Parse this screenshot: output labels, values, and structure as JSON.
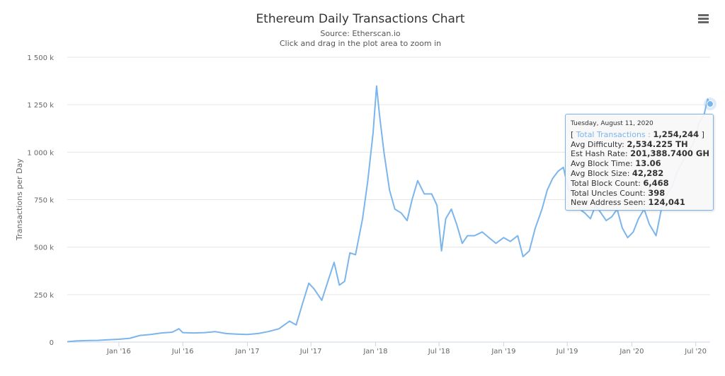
{
  "chart_data": {
    "type": "line",
    "title": "Ethereum Daily Transactions Chart",
    "subtitle": "Source: Etherscan.io",
    "subtitle2": "Click and drag in the plot area to zoom in",
    "ylabel": "Transactions per Day",
    "xlabel": "",
    "ylim": [
      0,
      1500000
    ],
    "y_ticks": [
      {
        "value": 0,
        "label": "0"
      },
      {
        "value": 250000,
        "label": "250 k"
      },
      {
        "value": 500000,
        "label": "500 k"
      },
      {
        "value": 750000,
        "label": "750 k"
      },
      {
        "value": 1000000,
        "label": "1 000 k"
      },
      {
        "value": 1250000,
        "label": "1 250 k"
      },
      {
        "value": 1500000,
        "label": "1 500 k"
      }
    ],
    "xlim": [
      "2015-08-07",
      "2020-08-11"
    ],
    "x_ticks": [
      {
        "date": "2016-01-01",
        "label": "Jan '16"
      },
      {
        "date": "2016-07-01",
        "label": "Jul '16"
      },
      {
        "date": "2017-01-01",
        "label": "Jan '17"
      },
      {
        "date": "2017-07-01",
        "label": "Jul '17"
      },
      {
        "date": "2018-01-01",
        "label": "Jan '18"
      },
      {
        "date": "2018-07-01",
        "label": "Jul '18"
      },
      {
        "date": "2019-01-01",
        "label": "Jan '19"
      },
      {
        "date": "2019-07-01",
        "label": "Jul '19"
      },
      {
        "date": "2020-01-01",
        "label": "Jan '20"
      },
      {
        "date": "2020-07-01",
        "label": "Jul '20"
      }
    ],
    "grid": true,
    "legend": "none",
    "series": [
      {
        "color": "#7cb5ec",
        "points": [
          [
            "2015-08-07",
            2000
          ],
          [
            "2015-09-01",
            6000
          ],
          [
            "2015-10-01",
            8000
          ],
          [
            "2015-11-01",
            9000
          ],
          [
            "2015-12-01",
            12000
          ],
          [
            "2016-01-01",
            15000
          ],
          [
            "2016-02-01",
            20000
          ],
          [
            "2016-03-01",
            35000
          ],
          [
            "2016-04-01",
            40000
          ],
          [
            "2016-05-01",
            48000
          ],
          [
            "2016-06-01",
            52000
          ],
          [
            "2016-06-20",
            70000
          ],
          [
            "2016-07-01",
            50000
          ],
          [
            "2016-08-01",
            48000
          ],
          [
            "2016-09-01",
            50000
          ],
          [
            "2016-10-01",
            55000
          ],
          [
            "2016-11-01",
            45000
          ],
          [
            "2016-12-01",
            42000
          ],
          [
            "2017-01-01",
            40000
          ],
          [
            "2017-02-01",
            45000
          ],
          [
            "2017-03-01",
            55000
          ],
          [
            "2017-04-01",
            70000
          ],
          [
            "2017-05-01",
            110000
          ],
          [
            "2017-05-20",
            90000
          ],
          [
            "2017-06-10",
            220000
          ],
          [
            "2017-06-25",
            310000
          ],
          [
            "2017-07-10",
            280000
          ],
          [
            "2017-08-01",
            220000
          ],
          [
            "2017-08-20",
            330000
          ],
          [
            "2017-09-05",
            420000
          ],
          [
            "2017-09-20",
            300000
          ],
          [
            "2017-10-05",
            320000
          ],
          [
            "2017-10-20",
            470000
          ],
          [
            "2017-11-05",
            460000
          ],
          [
            "2017-11-25",
            650000
          ],
          [
            "2017-12-10",
            850000
          ],
          [
            "2017-12-25",
            1100000
          ],
          [
            "2018-01-04",
            1349000
          ],
          [
            "2018-01-12",
            1200000
          ],
          [
            "2018-01-25",
            1000000
          ],
          [
            "2018-02-10",
            800000
          ],
          [
            "2018-02-25",
            700000
          ],
          [
            "2018-03-15",
            680000
          ],
          [
            "2018-04-01",
            640000
          ],
          [
            "2018-04-15",
            750000
          ],
          [
            "2018-05-01",
            850000
          ],
          [
            "2018-05-20",
            780000
          ],
          [
            "2018-06-10",
            780000
          ],
          [
            "2018-06-25",
            720000
          ],
          [
            "2018-07-08",
            480000
          ],
          [
            "2018-07-20",
            650000
          ],
          [
            "2018-08-05",
            700000
          ],
          [
            "2018-08-20",
            620000
          ],
          [
            "2018-09-05",
            520000
          ],
          [
            "2018-09-20",
            560000
          ],
          [
            "2018-10-10",
            560000
          ],
          [
            "2018-11-01",
            580000
          ],
          [
            "2018-11-20",
            550000
          ],
          [
            "2018-12-10",
            520000
          ],
          [
            "2019-01-01",
            550000
          ],
          [
            "2019-01-20",
            530000
          ],
          [
            "2019-02-10",
            560000
          ],
          [
            "2019-02-25",
            450000
          ],
          [
            "2019-03-15",
            480000
          ],
          [
            "2019-04-01",
            600000
          ],
          [
            "2019-04-20",
            700000
          ],
          [
            "2019-05-05",
            800000
          ],
          [
            "2019-05-20",
            860000
          ],
          [
            "2019-06-05",
            900000
          ],
          [
            "2019-06-20",
            920000
          ],
          [
            "2019-07-05",
            800000
          ],
          [
            "2019-07-20",
            780000
          ],
          [
            "2019-08-05",
            700000
          ],
          [
            "2019-08-20",
            680000
          ],
          [
            "2019-09-05",
            650000
          ],
          [
            "2019-09-20",
            720000
          ],
          [
            "2019-10-05",
            680000
          ],
          [
            "2019-10-20",
            640000
          ],
          [
            "2019-11-05",
            660000
          ],
          [
            "2019-11-20",
            700000
          ],
          [
            "2019-12-05",
            600000
          ],
          [
            "2019-12-20",
            550000
          ],
          [
            "2020-01-05",
            580000
          ],
          [
            "2020-01-20",
            650000
          ],
          [
            "2020-02-05",
            700000
          ],
          [
            "2020-02-20",
            620000
          ],
          [
            "2020-03-10",
            560000
          ],
          [
            "2020-03-25",
            700000
          ],
          [
            "2020-04-10",
            780000
          ],
          [
            "2020-04-25",
            820000
          ],
          [
            "2020-05-10",
            900000
          ],
          [
            "2020-05-25",
            950000
          ],
          [
            "2020-06-10",
            1000000
          ],
          [
            "2020-06-25",
            1050000
          ],
          [
            "2020-07-10",
            1150000
          ],
          [
            "2020-07-25",
            1200000
          ],
          [
            "2020-08-04",
            1280000
          ],
          [
            "2020-08-11",
            1254244
          ]
        ]
      }
    ],
    "tooltip": {
      "date": "Tuesday, August 11, 2020",
      "open_bracket": "[",
      "series_label": "Total Transactions :",
      "series_value": "1,254,244",
      "close_bracket": "]",
      "rows": [
        {
          "label": "Avg Difficulty:",
          "value": "2,534.225 TH"
        },
        {
          "label": "Est Hash Rate:",
          "value": "201,388.7400 GH"
        },
        {
          "label": "Avg Block Time:",
          "value": "13.06"
        },
        {
          "label": "Avg Block Size:",
          "value": "42,282"
        },
        {
          "label": "Total Block Count:",
          "value": "6,468"
        },
        {
          "label": "Total Uncles Count:",
          "value": "398"
        },
        {
          "label": "New Address Seen:",
          "value": "124,041"
        }
      ]
    }
  },
  "icons": {
    "menu": "hamburger-menu-icon"
  }
}
